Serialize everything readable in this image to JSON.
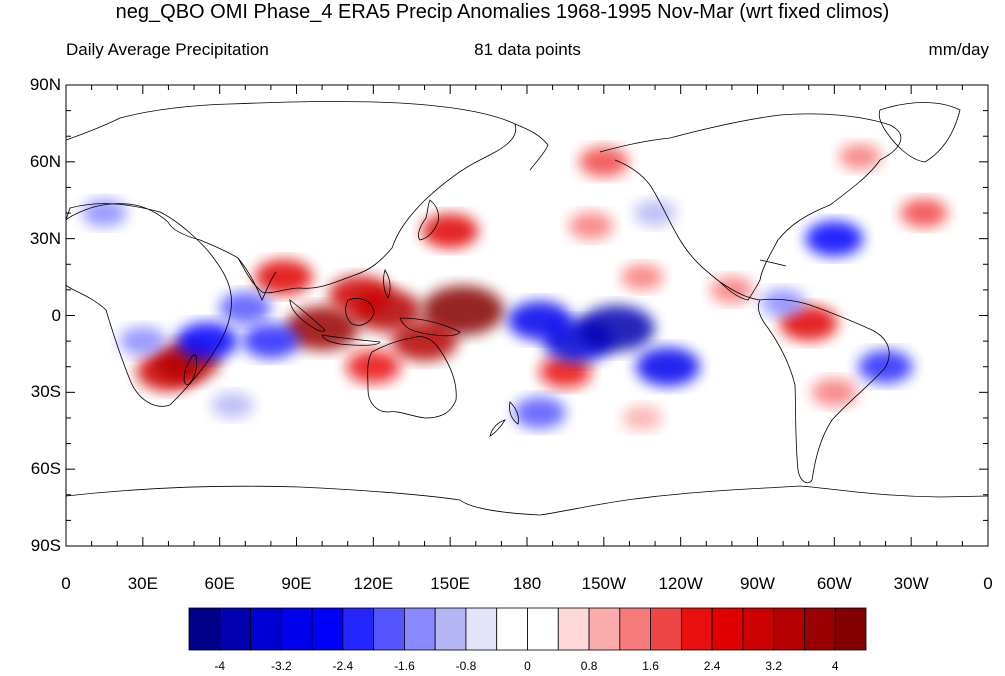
{
  "title": "neg_QBO OMI Phase_4 ERA5 Precip Anomalies 1968-1995 Nov-Mar (wrt fixed climos)",
  "subtitle_left": "Daily Average Precipitation",
  "subtitle_center": "81 data points",
  "subtitle_right": "mm/day",
  "map": {
    "projection": "cylindrical-equidistant",
    "center_longitude": 180,
    "y_ticks": [
      "90N",
      "60N",
      "30N",
      "0",
      "30S",
      "60S",
      "90S"
    ],
    "x_ticks": [
      "0",
      "30E",
      "60E",
      "90E",
      "120E",
      "150E",
      "180",
      "150W",
      "120W",
      "90W",
      "60W",
      "30W",
      "0"
    ]
  },
  "colorbar": {
    "colors": [
      "#00008b",
      "#0000b0",
      "#0000d5",
      "#0000ee",
      "#0000ff",
      "#2525ff",
      "#5555ff",
      "#8989ff",
      "#b5b5f5",
      "#e3e3fa",
      "#ffffff",
      "#ffffff",
      "#fdd8d8",
      "#fbabab",
      "#f77a7a",
      "#f04545",
      "#ea0f0f",
      "#e00000",
      "#cc0000",
      "#b40000",
      "#9a0000",
      "#840000"
    ],
    "labels": [
      "-4",
      "-3.2",
      "-2.4",
      "-1.6",
      "-0.8",
      "0",
      "0.8",
      "1.6",
      "2.4",
      "3.2",
      "4"
    ]
  },
  "anomalies": [
    {
      "lon": 125,
      "lat": 2,
      "value": 3.5
    },
    {
      "lon": 100,
      "lat": -5,
      "value": 3.8
    },
    {
      "lon": 155,
      "lat": 2,
      "value": 4.5
    },
    {
      "lon": 140,
      "lat": -10,
      "value": 3.2
    },
    {
      "lon": 115,
      "lat": 8,
      "value": 3.0
    },
    {
      "lon": 85,
      "lat": 15,
      "value": 2.5
    },
    {
      "lon": 150,
      "lat": 33,
      "value": 2.4
    },
    {
      "lon": 40,
      "lat": -22,
      "value": 3.0
    },
    {
      "lon": 47,
      "lat": -18,
      "value": 3.2
    },
    {
      "lon": 120,
      "lat": -20,
      "value": 2.2
    },
    {
      "lon": 210,
      "lat": 60,
      "value": 1.8
    },
    {
      "lon": 205,
      "lat": 35,
      "value": 1.4
    },
    {
      "lon": 225,
      "lat": 15,
      "value": 1.2
    },
    {
      "lon": 290,
      "lat": -3,
      "value": 2.5
    },
    {
      "lon": 260,
      "lat": 10,
      "value": 1.3
    },
    {
      "lon": 300,
      "lat": -30,
      "value": 1.5
    },
    {
      "lon": 335,
      "lat": 40,
      "value": 1.6
    },
    {
      "lon": 310,
      "lat": 62,
      "value": 1.2
    },
    {
      "lon": 195,
      "lat": -22,
      "value": 2.0
    },
    {
      "lon": 225,
      "lat": -40,
      "value": 1.0
    },
    {
      "lon": 200,
      "lat": -10,
      "value": -3.5
    },
    {
      "lon": 215,
      "lat": -5,
      "value": -4.0
    },
    {
      "lon": 235,
      "lat": -20,
      "value": -3.0
    },
    {
      "lon": 185,
      "lat": -2,
      "value": -3.0
    },
    {
      "lon": 55,
      "lat": -10,
      "value": -2.8
    },
    {
      "lon": 70,
      "lat": 3,
      "value": -2.0
    },
    {
      "lon": 80,
      "lat": -10,
      "value": -2.4
    },
    {
      "lon": 30,
      "lat": -10,
      "value": -1.6
    },
    {
      "lon": 300,
      "lat": 30,
      "value": -2.5
    },
    {
      "lon": 320,
      "lat": -20,
      "value": -2.2
    },
    {
      "lon": 280,
      "lat": 5,
      "value": -1.4
    },
    {
      "lon": 185,
      "lat": -38,
      "value": -2.0
    },
    {
      "lon": 15,
      "lat": 40,
      "value": -1.4
    },
    {
      "lon": 230,
      "lat": 40,
      "value": -1.2
    },
    {
      "lon": 65,
      "lat": -35,
      "value": -1.2
    }
  ]
}
